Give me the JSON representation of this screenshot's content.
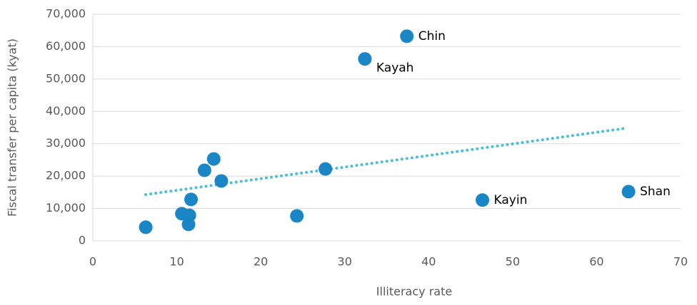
{
  "chart_data": {
    "type": "scatter",
    "x_label": "Illiteracy rate",
    "y_label": "Fiscal transfer per capita (kyat)",
    "x": [
      6.3,
      10.6,
      11.5,
      11.4,
      11.7,
      13.3,
      14.4,
      15.3,
      24.3,
      27.7,
      32.4,
      37.4,
      46.4,
      63.8
    ],
    "values": [
      4200,
      8400,
      7900,
      5100,
      12800,
      21800,
      25300,
      18500,
      7700,
      22200,
      56200,
      63200,
      12600,
      15200
    ],
    "labels": [
      null,
      null,
      null,
      null,
      null,
      null,
      null,
      null,
      null,
      null,
      "Kayah",
      "Chin",
      "Kayin",
      "Shan"
    ],
    "color": "#1a86c6",
    "trendline": {
      "x": [
        6.3,
        63.5
      ],
      "y": [
        14300,
        34800
      ],
      "color": "#4bbfd8"
    },
    "xlim": [
      0,
      70
    ],
    "xticks": [
      0,
      10,
      20,
      30,
      40,
      50,
      60,
      70
    ],
    "ylim": [
      0,
      70000
    ],
    "yticks": [
      0,
      {
        "value": 10000,
        "label": "10,000"
      },
      {
        "value": 20000,
        "label": "20,000"
      },
      {
        "value": 30000,
        "label": "30,000"
      },
      {
        "value": 40000,
        "label": "40,000"
      },
      {
        "value": 50000,
        "label": "50,000"
      },
      {
        "value": 60000,
        "label": "60,000"
      },
      {
        "value": 70000,
        "label": "70,000"
      }
    ],
    "grid": true
  }
}
